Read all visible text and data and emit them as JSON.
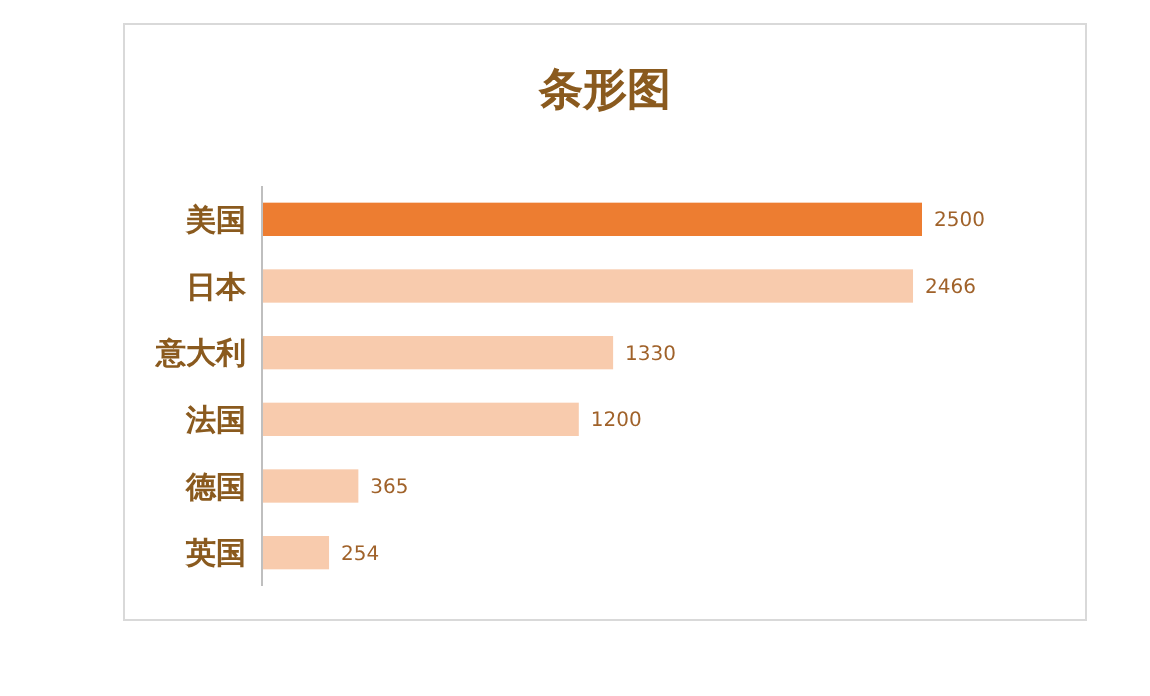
{
  "chart_data": {
    "type": "bar",
    "orientation": "horizontal",
    "title": "条形图",
    "categories": [
      "美国",
      "日本",
      "意大利",
      "法国",
      "德国",
      "英国"
    ],
    "values": [
      2500,
      2466,
      1330,
      1200,
      365,
      254
    ],
    "colors": [
      "#ed7d31",
      "#f8cbad",
      "#f8cbad",
      "#f8cbad",
      "#f8cbad",
      "#f8cbad"
    ],
    "data_labels": true
  }
}
